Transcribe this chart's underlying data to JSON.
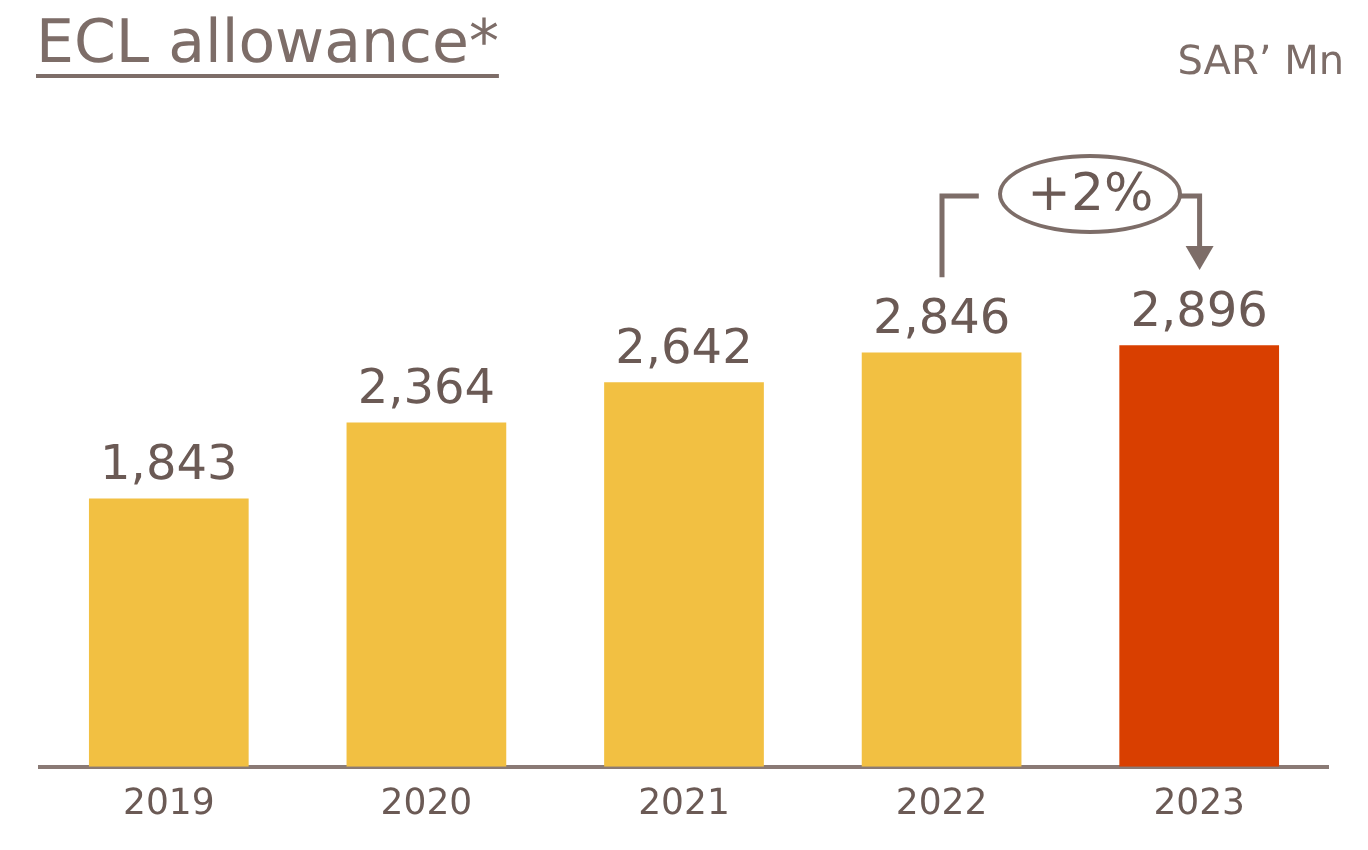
{
  "chart_data": {
    "type": "bar",
    "title": "ECL allowance*",
    "subtitle": "SAR’ Mn",
    "categories": [
      "2019",
      "2020",
      "2021",
      "2022",
      "2023"
    ],
    "values": [
      1843,
      2364,
      2642,
      2846,
      2896
    ],
    "value_labels": [
      "1,843",
      "2,364",
      "2,642",
      "2,846",
      "2,896"
    ],
    "colors": [
      "#f2c042",
      "#f2c042",
      "#f2c042",
      "#f2c042",
      "#d93f00"
    ],
    "legend": false,
    "annotations": [
      "+2%"
    ]
  }
}
